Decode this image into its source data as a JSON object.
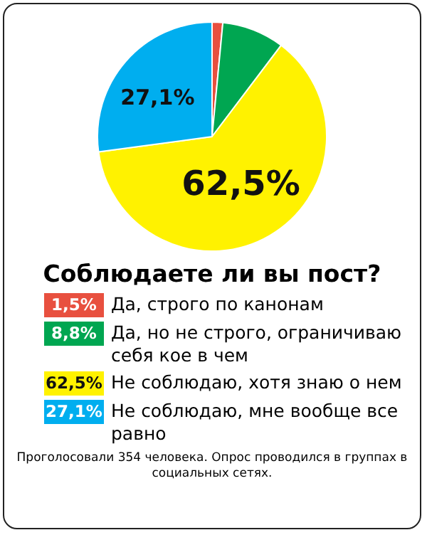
{
  "chart_data": {
    "type": "pie",
    "title": "Соблюдаете ли вы пост?",
    "categories": [
      "Да, строго по канонам",
      "Да, но не строго, ограничиваю себя кое в чем",
      "Не соблюдаю, хотя знаю о нем",
      "Не соблюдаю, мне вообще все равно"
    ],
    "values": [
      1.5,
      8.8,
      62.5,
      27.1
    ],
    "colors": [
      "#e8503f",
      "#00a651",
      "#fff200",
      "#00aeef"
    ],
    "value_labels": [
      "1,5%",
      "8,8%",
      "62,5%",
      "27,1%"
    ],
    "legend": "bottom",
    "annotations": [
      "Проголосовали 354 человека. Опрос проводился в группах в социальных сетях."
    ]
  }
}
